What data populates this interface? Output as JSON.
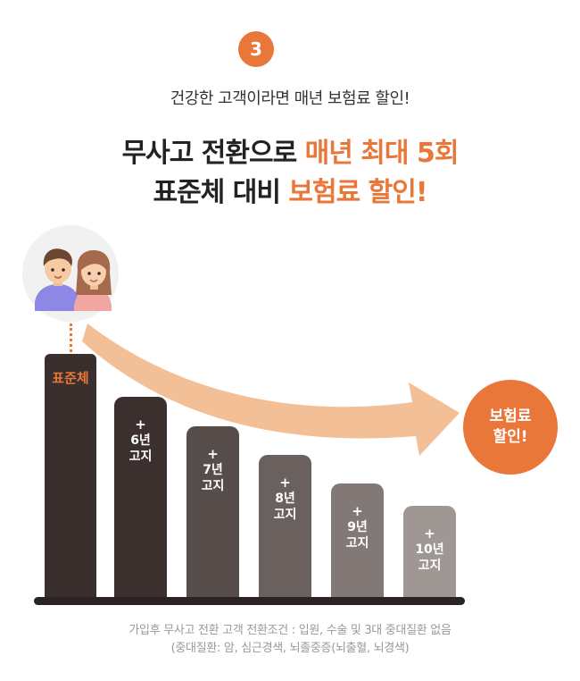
{
  "step": "3",
  "subtitle": "건강한 고객이라면 매년 보험료 할인!",
  "headline": {
    "line1_plain": "무사고 전환으로 ",
    "line1_highlight": "매년 최대 5회",
    "line2_plain": "표준체 대비 ",
    "line2_highlight": "보험료 할인!"
  },
  "bars": [
    {
      "label": "표준체"
    },
    {
      "plus": "+",
      "line1": "6년",
      "line2": "고지"
    },
    {
      "plus": "+",
      "line1": "7년",
      "line2": "고지"
    },
    {
      "plus": "+",
      "line1": "8년",
      "line2": "고지"
    },
    {
      "plus": "+",
      "line1": "9년",
      "line2": "고지"
    },
    {
      "plus": "+",
      "line1": "10년",
      "line2": "고지"
    }
  ],
  "discount": {
    "line1": "보험료",
    "line2": "할인!"
  },
  "note": {
    "line1": "가입후 무사고 전환 고객 전환조건 : 입원, 수술 및 3대 중대질환 없음",
    "line2": "(중대질환: 암, 심근경색, 뇌졸중증(뇌출혈, 뇌경색)"
  },
  "colors": {
    "accent": "#e9773a",
    "arrow": "#f3bf96",
    "dark": "#3a2f2c"
  }
}
